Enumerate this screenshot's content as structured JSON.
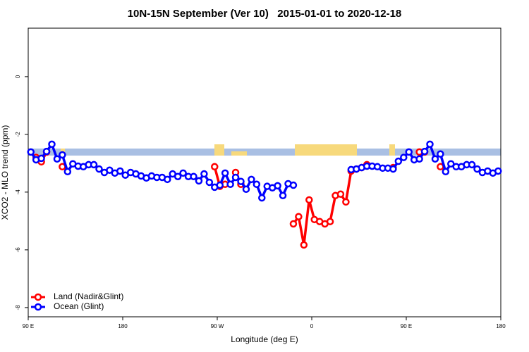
{
  "chart_data": {
    "type": "line",
    "title": "10N-15N September (Ver 10)   2015-01-01 to 2020-12-18",
    "x_label": "Longitude (deg E)",
    "y_label": "XCO2 - MLO trend (ppm)",
    "x": [
      92.5,
      97.5,
      102.5,
      107.5,
      112.5,
      117.5,
      122.5,
      127.5,
      132.5,
      137.5,
      142.5,
      147.5,
      152.5,
      157.5,
      162.5,
      167.5,
      172.5,
      177.5,
      182.5,
      187.5,
      192.5,
      197.5,
      202.5,
      207.5,
      212.5,
      217.5,
      222.5,
      227.5,
      232.5,
      237.5,
      242.5,
      247.5,
      252.5,
      257.5,
      262.5,
      267.5,
      272.5,
      277.5,
      282.5,
      287.5,
      292.5,
      297.5,
      302.5,
      307.5,
      312.5,
      317.5,
      322.5,
      327.5,
      332.5,
      337.5,
      342.5,
      347.5,
      352.5,
      357.5,
      362.5,
      367.5,
      372.5,
      377.5,
      382.5,
      387.5,
      392.5,
      397.5,
      402.5,
      407.5,
      412.5,
      417.5,
      422.5,
      427.5,
      432.5,
      437.5,
      442.5,
      447.5,
      452.5,
      457.5,
      462.5,
      467.5,
      472.5,
      477.5,
      482.5,
      487.5,
      492.5,
      497.5,
      502.5,
      507.5,
      512.5,
      517.5,
      522.5,
      527.5,
      532.5,
      537.5
    ],
    "series": [
      {
        "name": "Land (Nadir&Glint)",
        "color": "#ff0000",
        "values": [
          null,
          -2.8,
          -2.95,
          -2.61,
          null,
          null,
          -3.12,
          null,
          null,
          null,
          null,
          null,
          null,
          null,
          null,
          null,
          null,
          null,
          null,
          null,
          null,
          null,
          null,
          null,
          null,
          null,
          null,
          null,
          null,
          null,
          null,
          null,
          null,
          null,
          null,
          -3.12,
          -3.8,
          -3.73,
          null,
          -3.32,
          -3.73,
          null,
          null,
          null,
          null,
          null,
          null,
          null,
          null,
          null,
          -5.1,
          -4.85,
          -5.83,
          -4.27,
          -4.95,
          -5.02,
          -5.1,
          -5.02,
          -4.12,
          -4.07,
          -4.34,
          -3.27,
          -3.2,
          -3.15,
          -3.05,
          null,
          null,
          null,
          null,
          -3.15,
          null,
          null,
          null,
          null,
          -2.61,
          -2.61,
          null,
          null,
          -3.12,
          null,
          null,
          null,
          null,
          null,
          null,
          null,
          null,
          null,
          null,
          null
        ]
      },
      {
        "name": "Ocean (Glint)",
        "color": "#0000ff",
        "values": [
          -2.61,
          -2.88,
          -2.83,
          -2.59,
          -2.34,
          -2.85,
          -2.71,
          -3.29,
          -3.02,
          -3.1,
          -3.12,
          -3.05,
          -3.05,
          -3.2,
          -3.32,
          -3.24,
          -3.34,
          -3.27,
          -3.41,
          -3.32,
          -3.37,
          -3.44,
          -3.51,
          -3.44,
          -3.49,
          -3.49,
          -3.56,
          -3.37,
          -3.46,
          -3.34,
          -3.46,
          -3.46,
          -3.61,
          -3.37,
          -3.66,
          -3.83,
          -3.76,
          -3.34,
          -3.73,
          -3.49,
          -3.63,
          -3.9,
          -3.56,
          -3.73,
          -4.2,
          -3.8,
          -3.85,
          -3.78,
          -4.12,
          -3.71,
          -3.76,
          null,
          null,
          null,
          null,
          null,
          null,
          null,
          null,
          null,
          null,
          -3.22,
          -3.2,
          -3.15,
          -3.1,
          -3.1,
          -3.12,
          -3.17,
          -3.17,
          -3.2,
          -2.93,
          -2.8,
          -2.61,
          -2.88,
          -2.85,
          -2.59,
          -2.34,
          -2.85,
          -2.68,
          -3.29,
          -3.02,
          -3.12,
          -3.12,
          -3.05,
          -3.05,
          -3.2,
          -3.32,
          -3.27,
          -3.34,
          -3.27
        ]
      }
    ],
    "xlim": [
      90,
      540
    ],
    "xticks": [
      {
        "value": 90,
        "label": "90 E"
      },
      180,
      {
        "value": 270,
        "label": "90 W"
      },
      {
        "value": 360,
        "label": "0"
      },
      {
        "value": 450,
        "label": "90 E"
      },
      {
        "value": 540,
        "label": "180"
      }
    ],
    "ylim": [
      -8.32,
      1.68
    ],
    "yticks": [
      0,
      -2,
      -4,
      -6,
      -8
    ],
    "legend": "bottom-left"
  }
}
